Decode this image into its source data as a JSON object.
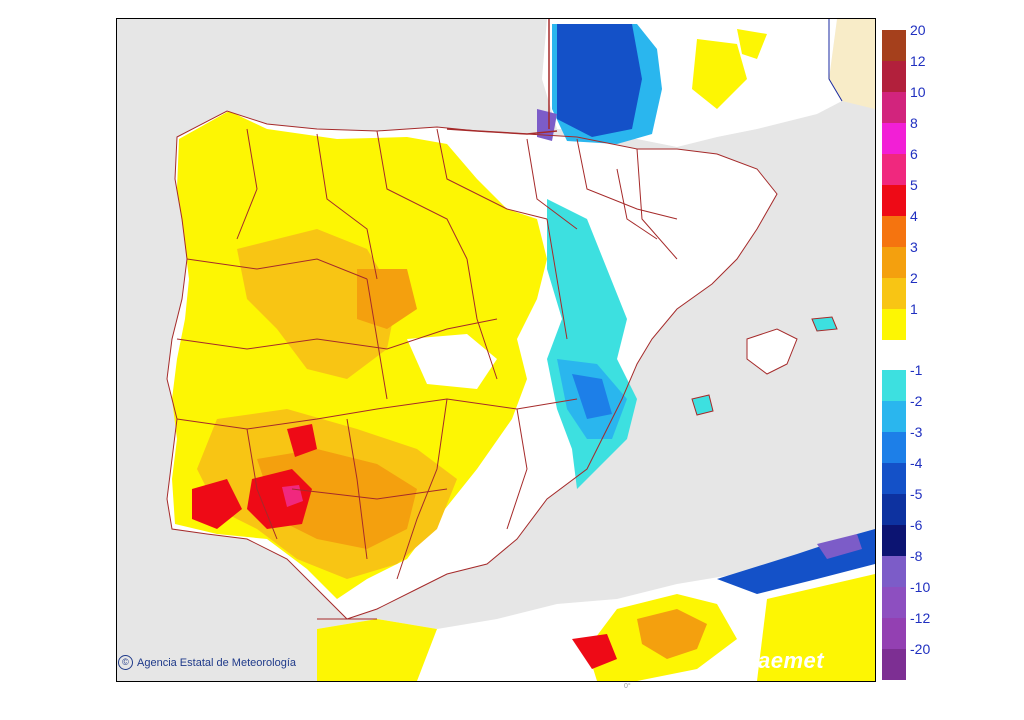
{
  "credit": {
    "copyright_symbol": "©",
    "text": "Agencia Estatal de Meteorología"
  },
  "logo": "aemet",
  "footer_tick": "0°",
  "legend": {
    "items": [
      {
        "label": "20",
        "color": "#a5401c"
      },
      {
        "label": "12",
        "color": "#b2203c"
      },
      {
        "label": "10",
        "color": "#d2247d"
      },
      {
        "label": "8",
        "color": "#f21fd6"
      },
      {
        "label": "6",
        "color": "#f0287e"
      },
      {
        "label": "5",
        "color": "#ee0a16"
      },
      {
        "label": "4",
        "color": "#f5740f"
      },
      {
        "label": "3",
        "color": "#f4a00e"
      },
      {
        "label": "2",
        "color": "#f8c514"
      },
      {
        "label": "1",
        "color": "#fdf603"
      },
      {
        "label": "",
        "color": "#ffffff"
      },
      {
        "label": "-1",
        "color": "#3de0e0"
      },
      {
        "label": "-2",
        "color": "#2ab6ee"
      },
      {
        "label": "-3",
        "color": "#1d7fe8"
      },
      {
        "label": "-4",
        "color": "#1451c8"
      },
      {
        "label": "-5",
        "color": "#0d32a0"
      },
      {
        "label": "-6",
        "color": "#0c1472"
      },
      {
        "label": "-8",
        "color": "#7c5cc8"
      },
      {
        "label": "-10",
        "color": "#8d4fc0"
      },
      {
        "label": "-12",
        "color": "#9340b2"
      },
      {
        "label": "-20",
        "color": "#7d2f93"
      }
    ]
  },
  "colors": {
    "sea": "#e6e6e6",
    "land_neutral": "#ffffff",
    "france": "#f8ecc8",
    "border": "#a52a2a"
  }
}
